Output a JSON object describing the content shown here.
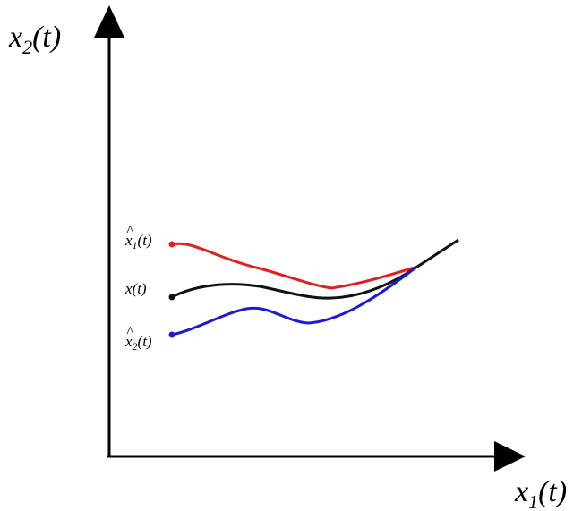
{
  "axes": {
    "y_label": {
      "base": "x",
      "sub": "2",
      "rest": "(t)"
    },
    "x_label": {
      "base": "x",
      "sub": "1",
      "rest": "(t)"
    }
  },
  "curves": [
    {
      "id": "estimate-1",
      "label": {
        "base": "x",
        "sub": "1",
        "rest": "(t)",
        "hat": true
      },
      "color": "#e0201e"
    },
    {
      "id": "true-state",
      "label": {
        "base": "x",
        "sub": "",
        "rest": "(t)",
        "hat": false
      },
      "color": "#111111"
    },
    {
      "id": "estimate-2",
      "label": {
        "base": "x",
        "sub": "2",
        "rest": "(t)",
        "hat": true
      },
      "color": "#1a1adb"
    }
  ],
  "colors": {
    "axis": "#000000"
  }
}
